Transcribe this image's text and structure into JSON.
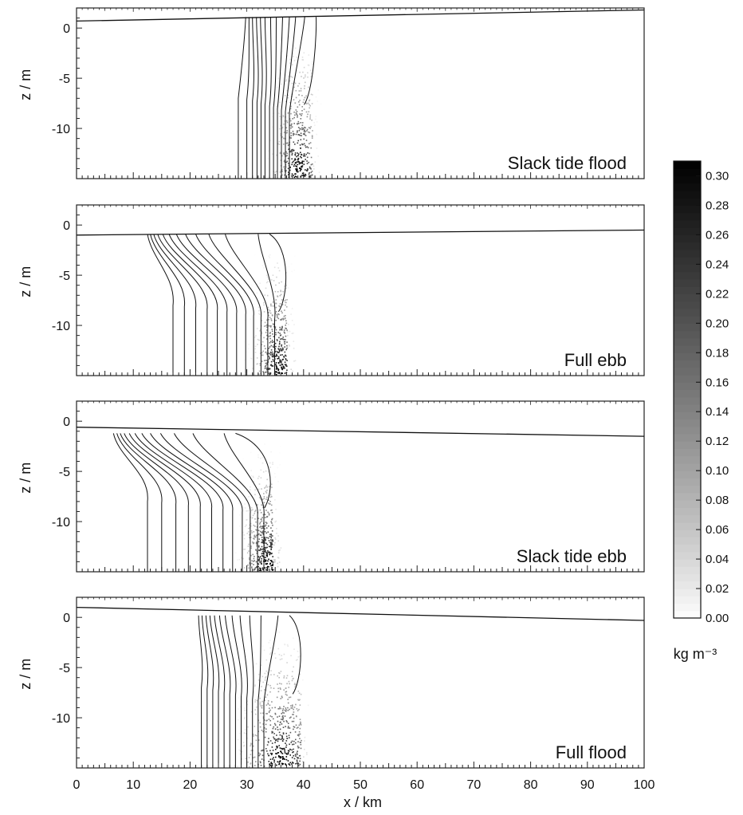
{
  "chart_data": {
    "type": "heatmap",
    "panels": [
      {
        "label": "Slack tide flood",
        "surface": [
          0.7,
          1.8
        ],
        "contour_bottom_x": [
          28.5,
          30,
          31,
          31.8,
          32.5,
          33.2,
          34,
          34.7,
          35.4,
          36.1,
          36.8,
          37.5
        ],
        "contour_top_x": [
          29.8,
          30.4,
          31,
          31.7,
          32.4,
          33.2,
          34.2,
          35.2,
          36.3,
          37.5,
          38.6,
          40.2
        ],
        "front_x": 41.5,
        "front_z": -7,
        "max_zone_x": [
          37,
          42
        ],
        "turbidity_max_x": 39
      },
      {
        "label": "Full ebb",
        "surface": [
          -1.0,
          -0.5
        ],
        "contour_bottom_x": [
          17,
          19,
          21,
          23,
          24.8,
          26.5,
          28.2,
          29.8,
          31.2,
          32.5,
          33.7,
          34.9
        ],
        "contour_top_x": [
          12.5,
          13,
          13.6,
          14.3,
          15.2,
          16.3,
          17.6,
          19.2,
          21,
          23.3,
          26.2,
          32
        ],
        "front_x": 37,
        "front_z": -8,
        "max_zone_x": [
          33,
          38
        ],
        "turbidity_max_x": 35.5
      },
      {
        "label": "Slack tide ebb",
        "surface": [
          -0.6,
          -1.5
        ],
        "contour_bottom_x": [
          12.5,
          15,
          17.5,
          19.7,
          21.8,
          23.8,
          25.8,
          27.5,
          29.2,
          30.6,
          31.9,
          33
        ],
        "contour_top_x": [
          6.5,
          7.1,
          7.7,
          8.4,
          9.3,
          10.3,
          11.5,
          13,
          14.8,
          17.2,
          20.5,
          26
        ],
        "front_x": 34.5,
        "front_z": -8,
        "max_zone_x": [
          31,
          36
        ],
        "turbidity_max_x": 33.5
      },
      {
        "label": "Full flood",
        "surface": [
          1.0,
          -0.3
        ],
        "contour_bottom_x": [
          22,
          23,
          24,
          25,
          26,
          27,
          28,
          29,
          30,
          31,
          32,
          33
        ],
        "contour_top_x": [
          21.5,
          22.1,
          22.8,
          23.5,
          24.3,
          25.2,
          26.2,
          27.4,
          28.8,
          30.5,
          32.5,
          35.5
        ],
        "front_x": 39.5,
        "front_z": -7,
        "max_zone_x": [
          32,
          40
        ],
        "turbidity_max_x": 36
      }
    ],
    "x_axis": {
      "label": "x / km",
      "range": [
        0,
        100
      ],
      "ticks": [
        "0",
        "10",
        "20",
        "30",
        "40",
        "50",
        "60",
        "70",
        "80",
        "90",
        "100"
      ]
    },
    "y_axis": {
      "label": "z / m",
      "range": [
        -15,
        2
      ],
      "ticks": [
        "0",
        "-5",
        "-10"
      ]
    },
    "colorbar": {
      "unit": "kg m⁻³",
      "range": [
        0,
        0.31
      ],
      "ticks": [
        "0.30",
        "0.28",
        "0.26",
        "0.24",
        "0.22",
        "0.20",
        "0.18",
        "0.16",
        "0.14",
        "0.12",
        "0.10",
        "0.08",
        "0.06",
        "0.04",
        "0.02",
        "0.00"
      ],
      "colors": {
        "low": "#ffffff",
        "high": "#000000"
      }
    }
  }
}
